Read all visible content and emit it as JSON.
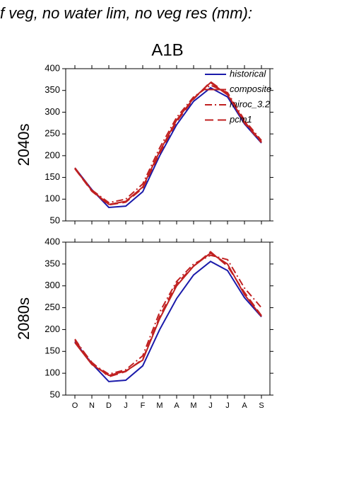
{
  "title": "f veg, no water lim, no veg res (mm):",
  "subtitle": "A1B",
  "chart_data": [
    {
      "type": "line",
      "ylabel": "2040s",
      "ylim": [
        50,
        400
      ],
      "yticks": [
        50,
        100,
        150,
        200,
        250,
        300,
        350,
        400
      ],
      "legend": "upper right",
      "series": [
        {
          "name": "historical",
          "color": "#1a1aaa",
          "dash": "solid",
          "values": [
            172,
            122,
            81,
            84,
            117,
            200,
            271,
            325,
            356,
            335,
            273,
            229
          ]
        },
        {
          "name": "composite",
          "color": "#c02020",
          "dash": "solid",
          "values": [
            170,
            120,
            88,
            95,
            128,
            210,
            282,
            332,
            368,
            340,
            278,
            232
          ]
        },
        {
          "name": "miroc_3.2",
          "color": "#c02020",
          "dash": "dashdot",
          "values": [
            172,
            121,
            92,
            100,
            135,
            218,
            288,
            335,
            362,
            345,
            282,
            235
          ]
        },
        {
          "name": "pcm1",
          "color": "#c02020",
          "dash": "longdash",
          "values": [
            170,
            118,
            87,
            93,
            125,
            205,
            278,
            330,
            370,
            342,
            275,
            230
          ]
        }
      ]
    },
    {
      "type": "line",
      "ylabel": "2080s",
      "ylim": [
        50,
        400
      ],
      "yticks": [
        50,
        100,
        150,
        200,
        250,
        300,
        350,
        400
      ],
      "categories": [
        "O",
        "N",
        "D",
        "J",
        "F",
        "M",
        "A",
        "M",
        "J",
        "J",
        "A",
        "S"
      ],
      "series": [
        {
          "color": "#1a1aaa",
          "dash": "solid",
          "values": [
            172,
            122,
            81,
            84,
            117,
            200,
            271,
            325,
            356,
            335,
            273,
            229
          ]
        },
        {
          "color": "#c02020",
          "dash": "solid",
          "values": [
            170,
            120,
            95,
            105,
            130,
            225,
            300,
            345,
            375,
            350,
            280,
            230
          ]
        },
        {
          "color": "#c02020",
          "dash": "dashdot",
          "values": [
            178,
            122,
            98,
            108,
            140,
            240,
            310,
            350,
            370,
            360,
            295,
            250
          ]
        },
        {
          "color": "#c02020",
          "dash": "longdash",
          "values": [
            175,
            125,
            92,
            104,
            132,
            230,
            305,
            345,
            378,
            345,
            285,
            232
          ]
        }
      ]
    }
  ]
}
